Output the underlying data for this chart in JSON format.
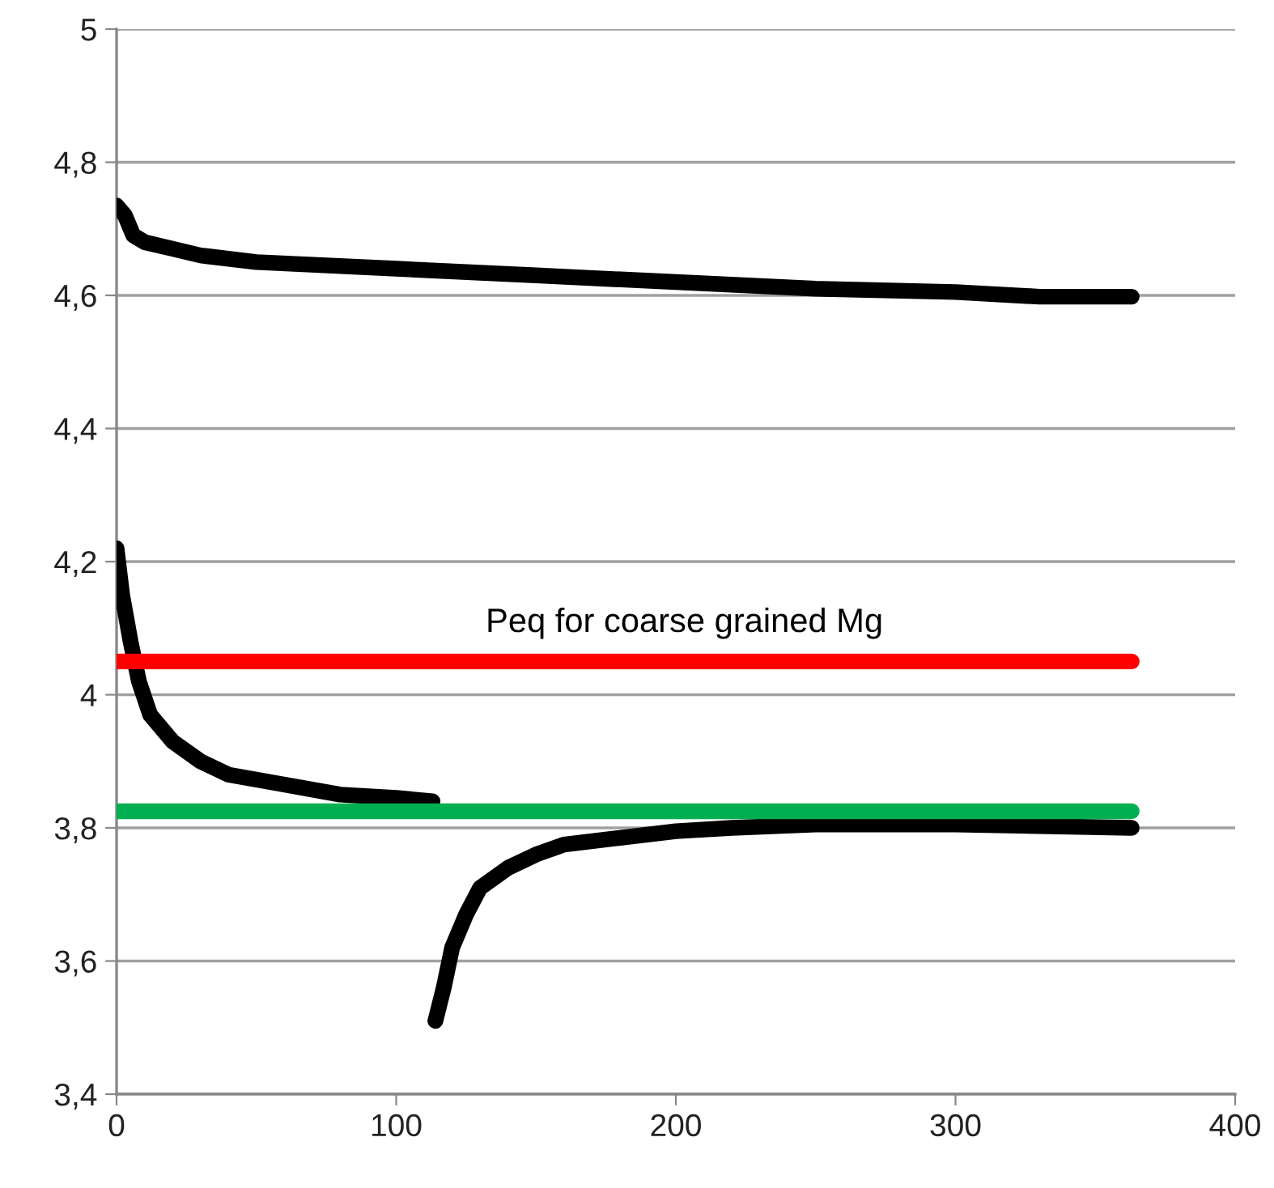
{
  "chart_data": {
    "type": "line",
    "xlim": [
      0,
      400
    ],
    "xticks": [
      0,
      100,
      200,
      300,
      400
    ],
    "ylim": [
      3.4,
      5
    ],
    "yticks": [
      {
        "value": 3.4,
        "label": "3,4"
      },
      {
        "value": 3.6,
        "label": "3,6"
      },
      {
        "value": 3.8,
        "label": "3,8"
      },
      4,
      {
        "value": 4.2,
        "label": "4,2"
      },
      {
        "value": 4.4,
        "label": "4,4"
      },
      {
        "value": 4.6,
        "label": "4,6"
      },
      {
        "value": 4.8,
        "label": "4,8"
      },
      5
    ],
    "grid": "y",
    "legend": false,
    "marker": "none",
    "line_style": "solid",
    "series": [
      {
        "color": "#000000",
        "x": [
          0,
          3,
          6,
          10,
          20,
          30,
          50,
          100,
          150,
          200,
          250,
          300,
          330,
          363
        ],
        "values": [
          4.735,
          4.72,
          4.69,
          4.68,
          4.67,
          4.66,
          4.65,
          4.64,
          4.63,
          4.62,
          4.61,
          4.605,
          4.598,
          4.598
        ]
      },
      {
        "color": "#000000",
        "x": [
          0,
          2,
          5,
          8,
          12,
          20,
          30,
          40,
          60,
          80,
          100,
          113
        ],
        "values": [
          4.22,
          4.15,
          4.08,
          4.02,
          3.97,
          3.93,
          3.9,
          3.88,
          3.865,
          3.85,
          3.845,
          3.84
        ]
      },
      {
        "color": "#000000",
        "x": [
          114,
          117,
          120,
          125,
          130,
          140,
          150,
          160,
          180,
          200,
          220,
          250,
          300,
          363
        ],
        "values": [
          3.51,
          3.56,
          3.62,
          3.67,
          3.71,
          3.74,
          3.76,
          3.775,
          3.785,
          3.795,
          3.8,
          3.805,
          3.805,
          3.8
        ]
      },
      {
        "color": "#ff0000",
        "x": [
          0,
          363
        ],
        "values": [
          4.05,
          4.05
        ]
      },
      {
        "color": "#00b050",
        "x": [
          0,
          363
        ],
        "values": [
          3.825,
          3.825
        ]
      }
    ],
    "annotations": [
      {
        "text": "Peq for coarse grained Mg",
        "x": 132,
        "y": 4.05
      }
    ]
  }
}
